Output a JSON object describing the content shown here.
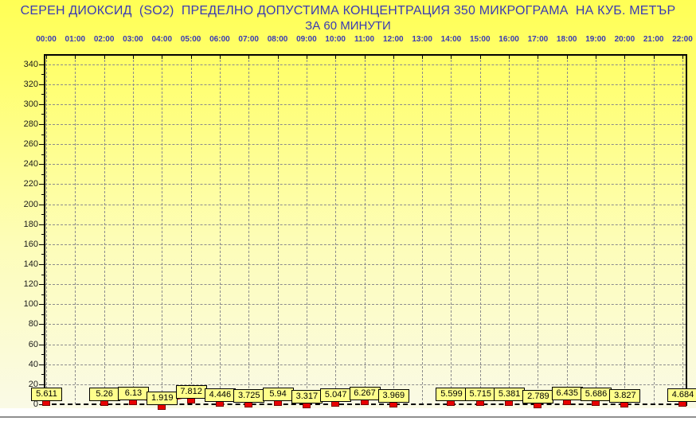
{
  "window": {
    "bg_gradient_top": "#ffff55",
    "bg_gradient_bottom": "#fafae6",
    "title_color": "#3a3ab4",
    "bottom_strip_color": "#ffffff",
    "bottom_rule_color": "#8f8f8f"
  },
  "chart_data": {
    "type": "line",
    "title": "СЕРЕН ДИОКСИД  (SO2)  ПРЕДЕЛНО ДОПУСТИМА КОНЦЕНТРАЦИЯ 350 МИКРОГРАМА  НА КУБ. МЕТЪР",
    "subtitle": "ЗА 60 МИНУТИ",
    "x_labels": [
      "00:00",
      "01:00",
      "02:00",
      "03:00",
      "04:00",
      "05:00",
      "06:00",
      "07:00",
      "08:00",
      "09:00",
      "10:00",
      "11:00",
      "12:00",
      "13:00",
      "14:00",
      "15:00",
      "16:00",
      "17:00",
      "18:00",
      "19:00",
      "20:00",
      "21:00",
      "22:00"
    ],
    "series": [
      {
        "name": "SO2",
        "values": [
          5.611,
          null,
          5.26,
          6.13,
          1.919,
          7.812,
          4.446,
          3.725,
          5.94,
          3.317,
          5.047,
          6.267,
          3.969,
          null,
          5.599,
          5.715,
          5.381,
          2.789,
          6.435,
          5.686,
          3.827,
          null,
          4.684
        ]
      }
    ],
    "y_ticks": [
      0,
      20,
      40,
      60,
      80,
      100,
      120,
      140,
      160,
      180,
      200,
      220,
      240,
      260,
      280,
      300,
      320,
      340
    ],
    "ylim": [
      0,
      350
    ],
    "grid": true,
    "grid_style": "dashed",
    "grid_color": "#8c8c8c",
    "legend": "none",
    "line_color": "#cc2020",
    "marker": "square",
    "marker_fill": "#e80000",
    "marker_border": "#7c0000",
    "point_label_bg": "#ffff8c",
    "point_label_border": "#000000"
  }
}
